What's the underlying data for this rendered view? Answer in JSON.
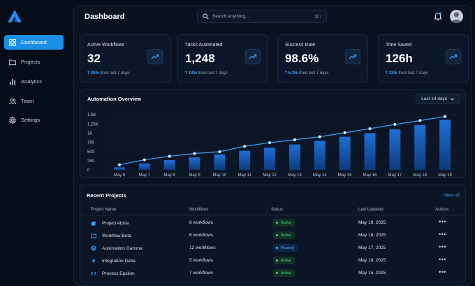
{
  "sidebar": {
    "items": [
      {
        "label": "Dashboard",
        "icon": "grid-icon",
        "active": true
      },
      {
        "label": "Projects",
        "icon": "folder-icon"
      },
      {
        "label": "Analytics",
        "icon": "bar-chart-icon"
      },
      {
        "label": "Team",
        "icon": "users-icon"
      },
      {
        "label": "Settings",
        "icon": "gear-icon"
      }
    ]
  },
  "header": {
    "title": "Dashboard",
    "search_placeholder": "Search anything...",
    "search_shortcut": "⌘ /"
  },
  "stats": [
    {
      "label": "Active Workflows",
      "value": "32",
      "delta": "20%",
      "delta_text": "from last 7 days"
    },
    {
      "label": "Tasks Automated",
      "value": "1,248",
      "delta": "18%",
      "delta_text": "from last 7 days"
    },
    {
      "label": "Success Rate",
      "value": "98.6%",
      "delta": "6.3%",
      "delta_text": "from last 7 days"
    },
    {
      "label": "Time Saved",
      "value": "126h",
      "delta": "22%",
      "delta_text": "from last 7 days"
    }
  ],
  "chart": {
    "title": "Automation Overview",
    "range_label": "Last 14 days"
  },
  "chart_data": {
    "type": "bar",
    "categories": [
      "May 6",
      "May 7",
      "May 8",
      "May 9",
      "May 10",
      "May 11",
      "May 12",
      "May 13",
      "May 14",
      "May 15",
      "May 16",
      "May 17",
      "May 18",
      "May 19"
    ],
    "series": [
      {
        "type": "bar",
        "values": [
          70,
          175,
          265,
          340,
          420,
          520,
          600,
          690,
          790,
          900,
          1000,
          1100,
          1220,
          1360
        ]
      },
      {
        "type": "line",
        "values": [
          140,
          275,
          370,
          445,
          495,
          640,
          740,
          820,
          900,
          1010,
          1120,
          1235,
          1340,
          1450
        ]
      }
    ],
    "yticks": [
      "0",
      "250",
      "500",
      "750",
      "1K",
      "1.25K",
      "1.5K"
    ],
    "ylim": [
      0,
      1500
    ],
    "colors": {
      "bar": "#1b64c8",
      "line": "#3a9bf0",
      "point": "#ffffff"
    }
  },
  "projects": {
    "title": "Recent Projects",
    "view_all": "View all",
    "columns": [
      "Project Name",
      "Workflows",
      "Status",
      "Last Updated",
      "Actions"
    ],
    "rows": [
      {
        "name": "Project Alpha",
        "icon": "puzzle-icon",
        "workflows": "8 workflows",
        "status": "Active",
        "status_type": "active",
        "updated": "May 19, 2025",
        "actions": "•••"
      },
      {
        "name": "Workflow Beta",
        "icon": "folder-icon",
        "workflows": "6 workflows",
        "status": "Active",
        "status_type": "active",
        "updated": "May 18, 2025",
        "actions": "•••"
      },
      {
        "name": "Automation Gamma",
        "icon": "layers-icon",
        "workflows": "12 workflows",
        "status": "Paused",
        "status_type": "paused",
        "updated": "May 17, 2025",
        "actions": "•••"
      },
      {
        "name": "Integration Delta",
        "icon": "bolt-icon",
        "workflows": "5 workflows",
        "status": "Active",
        "status_type": "active",
        "updated": "May 16, 2025",
        "actions": "•••"
      },
      {
        "name": "Process Epsilon",
        "icon": "code-icon",
        "workflows": "7 workflows",
        "status": "Active",
        "status_type": "active",
        "updated": "May 15, 2025",
        "actions": "•••"
      }
    ]
  },
  "colors": {
    "accent": "#1b8fe6",
    "active": "#4fd48a",
    "paused": "#4ba6ff"
  }
}
